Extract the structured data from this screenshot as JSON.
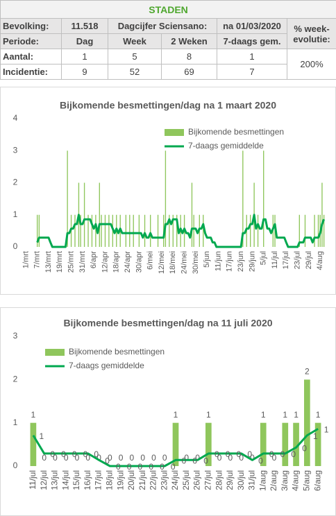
{
  "table": {
    "title": "STADEN",
    "header_rows": [
      [
        "Bevolking:",
        "11.518",
        "Dagcijfer Sciensano:",
        "na 01/03/2020"
      ],
      [
        "Periode:",
        "Dag",
        "Week",
        "2 Weken",
        "7-daags gem."
      ]
    ],
    "evolution_header": [
      "% week-",
      "evolutie:"
    ],
    "rows": [
      [
        "Aantal:",
        "1",
        "5",
        "8",
        "1"
      ],
      [
        "Incidentie:",
        "9",
        "52",
        "69",
        "7"
      ]
    ],
    "evolution_value": "200%"
  },
  "chart_data": [
    {
      "type": "bar",
      "title": "Bijkomende besmettingen/dag  na 1 maart 2020",
      "categories": [
        "1/mrt",
        null,
        null,
        null,
        null,
        null,
        "7/mrt",
        null,
        null,
        null,
        null,
        null,
        "13/mrt",
        null,
        null,
        null,
        null,
        null,
        "19/mrt",
        null,
        null,
        null,
        null,
        null,
        "25/mrt",
        null,
        null,
        null,
        null,
        null,
        "31/mrt",
        null,
        null,
        null,
        null,
        null,
        "6/apr",
        null,
        null,
        null,
        null,
        null,
        "12/apr",
        null,
        null,
        null,
        null,
        null,
        "18/apr",
        null,
        null,
        null,
        null,
        null,
        "24/apr",
        null,
        null,
        null,
        null,
        null,
        "30/apr",
        null,
        null,
        null,
        null,
        null,
        "6/mei",
        null,
        null,
        null,
        null,
        null,
        "12/mei",
        null,
        null,
        null,
        null,
        null,
        "18/mei",
        null,
        null,
        null,
        null,
        null,
        "24/mei",
        null,
        null,
        null,
        null,
        null,
        "30/mei",
        null,
        null,
        null,
        null,
        null,
        "5/jun",
        null,
        null,
        null,
        null,
        null,
        "11/jun",
        null,
        null,
        null,
        null,
        null,
        "17/jun",
        null,
        null,
        null,
        null,
        null,
        "23/jun",
        null,
        null,
        null,
        null,
        null,
        "29/jun",
        null,
        null,
        null,
        null,
        null,
        "5/jul",
        null,
        null,
        null,
        null,
        null,
        "11/jul",
        null,
        null,
        null,
        null,
        null,
        "17/jul",
        null,
        null,
        null,
        null,
        null,
        "23/jul",
        null,
        null,
        null,
        null,
        null,
        "29/jul",
        null,
        null,
        null,
        null,
        null,
        "4/aug",
        null,
        null
      ],
      "ylim": [
        0,
        4
      ],
      "yticks": [
        0,
        1,
        2,
        3,
        4
      ],
      "series": [
        {
          "name": "Bijkomende besmettingen",
          "type": "bar",
          "color": "#8fc65c",
          "values": [
            0,
            0,
            0,
            0,
            0,
            0,
            1,
            1,
            0,
            0,
            0,
            0,
            0,
            0,
            0,
            0,
            0,
            0,
            0,
            0,
            0,
            0,
            3,
            0,
            1,
            0,
            1,
            0,
            2,
            1,
            0,
            2,
            0,
            1,
            0,
            1,
            0,
            1,
            0,
            2,
            1,
            0,
            1,
            0,
            1,
            0,
            1,
            0,
            1,
            0,
            1,
            0,
            0,
            1,
            0,
            1,
            0,
            1,
            0,
            0,
            1,
            0,
            0,
            1,
            0,
            0,
            1,
            0,
            0,
            0,
            1,
            0,
            0,
            1,
            3,
            0,
            1,
            0,
            1,
            0,
            1,
            0,
            1,
            0,
            1,
            0,
            0,
            0,
            2,
            1,
            0,
            0,
            1,
            0,
            1,
            0,
            0,
            0,
            0,
            0,
            0,
            0,
            0,
            0,
            0,
            0,
            0,
            0,
            0,
            0,
            0,
            0,
            0,
            0,
            0,
            3,
            0,
            1,
            0,
            1,
            0,
            2,
            0,
            1,
            0,
            0,
            3,
            0,
            0,
            0,
            0,
            1,
            1,
            0,
            0,
            0,
            0,
            0,
            0,
            0,
            0,
            0,
            0,
            0,
            0,
            1,
            0,
            0,
            1,
            0,
            0,
            0,
            0,
            1,
            0,
            1,
            1,
            2,
            1
          ]
        },
        {
          "name": "7-daags gemiddelde",
          "type": "line",
          "color": "#00a84f",
          "values": [
            null,
            null,
            null,
            null,
            null,
            null,
            0.14,
            0.29,
            0.29,
            0.29,
            0.29,
            0.29,
            0.29,
            0.14,
            0,
            0,
            0,
            0,
            0,
            0,
            0,
            0,
            0.43,
            0.43,
            0.57,
            0.57,
            0.71,
            0.71,
            1,
            0.71,
            0.71,
            0.86,
            0.86,
            0.86,
            0.86,
            0.71,
            0.57,
            0.71,
            0.43,
            0.71,
            0.71,
            0.71,
            0.71,
            0.71,
            0.71,
            0.71,
            0.57,
            0.43,
            0.57,
            0.43,
            0.57,
            0.43,
            0.43,
            0.43,
            0.43,
            0.43,
            0.43,
            0.43,
            0.43,
            0.43,
            0.43,
            0.43,
            0.29,
            0.43,
            0.29,
            0.29,
            0.43,
            0.29,
            0.29,
            0.29,
            0.29,
            0.29,
            0.29,
            0.29,
            0.71,
            0.71,
            0.86,
            0.71,
            0.86,
            0.86,
            0.86,
            0.43,
            0.57,
            0.43,
            0.57,
            0.43,
            0.43,
            0.29,
            0.57,
            0.57,
            0.57,
            0.43,
            0.57,
            0.57,
            0.71,
            0.43,
            0.29,
            0.29,
            0.29,
            0.14,
            0.14,
            0,
            0,
            0,
            0,
            0,
            0,
            0,
            0,
            0,
            0,
            0,
            0,
            0,
            0,
            0.43,
            0.43,
            0.57,
            0.57,
            0.71,
            0.71,
            1,
            0.57,
            0.71,
            0.57,
            0.57,
            0.86,
            0.86,
            0.57,
            0.57,
            0.43,
            0.57,
            0.71,
            0.29,
            0.29,
            0.29,
            0.29,
            0.29,
            0.14,
            0,
            0,
            0,
            0,
            0,
            0,
            0.14,
            0.14,
            0.14,
            0.29,
            0.29,
            0.29,
            0.29,
            0.14,
            0.29,
            0.29,
            0.29,
            0.43,
            0.71,
            0.86
          ]
        }
      ]
    },
    {
      "type": "bar",
      "title": "Bijkomende besmettingen/dag  na 11 juli 2020",
      "categories": [
        "11/jul",
        "12/jul",
        "13/jul",
        "14/jul",
        "15/jul",
        "16/jul",
        "17/jul",
        "18/jul",
        "19/jul",
        "20/jul",
        "21/jul",
        "22/jul",
        "23/jul",
        "24/jul",
        "25/jul",
        "26/jul",
        "27/jul",
        "28/jul",
        "29/jul",
        "30/jul",
        "31/jul",
        "1/aug",
        "2/aug",
        "3/aug",
        "4/aug",
        "5/aug",
        "6/aug"
      ],
      "ylim": [
        0,
        3
      ],
      "yticks": [
        0,
        1,
        2,
        3
      ],
      "series": [
        {
          "name": "Bijkomende besmettingen",
          "type": "bar",
          "color": "#8fc65c",
          "data_labels": true,
          "values": [
            1,
            0,
            0,
            0,
            0,
            0,
            0,
            0,
            0,
            0,
            0,
            0,
            0,
            1,
            0,
            0,
            1,
            0,
            0,
            0,
            0,
            1,
            0,
            1,
            1,
            2,
            1
          ]
        },
        {
          "name": "7-daags gemiddelde",
          "type": "line",
          "color": "#00a84f",
          "data_labels": true,
          "values": [
            0.71,
            0.29,
            0.29,
            0.29,
            0.29,
            0.29,
            0.14,
            0,
            0,
            0,
            0,
            0,
            0,
            0.14,
            0.14,
            0.14,
            0.29,
            0.29,
            0.29,
            0.29,
            0.14,
            0.29,
            0.29,
            0.29,
            0.43,
            0.71,
            0.86
          ],
          "value_labels": [
            "1",
            "0",
            "0",
            "0",
            "0",
            "0",
            "0",
            "0",
            "0",
            "0",
            "0",
            "0",
            "0",
            "0",
            "0",
            "0",
            "0",
            "0",
            "0",
            "0",
            "0",
            "0",
            "0",
            "0",
            "0",
            "1",
            "1"
          ]
        }
      ]
    }
  ]
}
